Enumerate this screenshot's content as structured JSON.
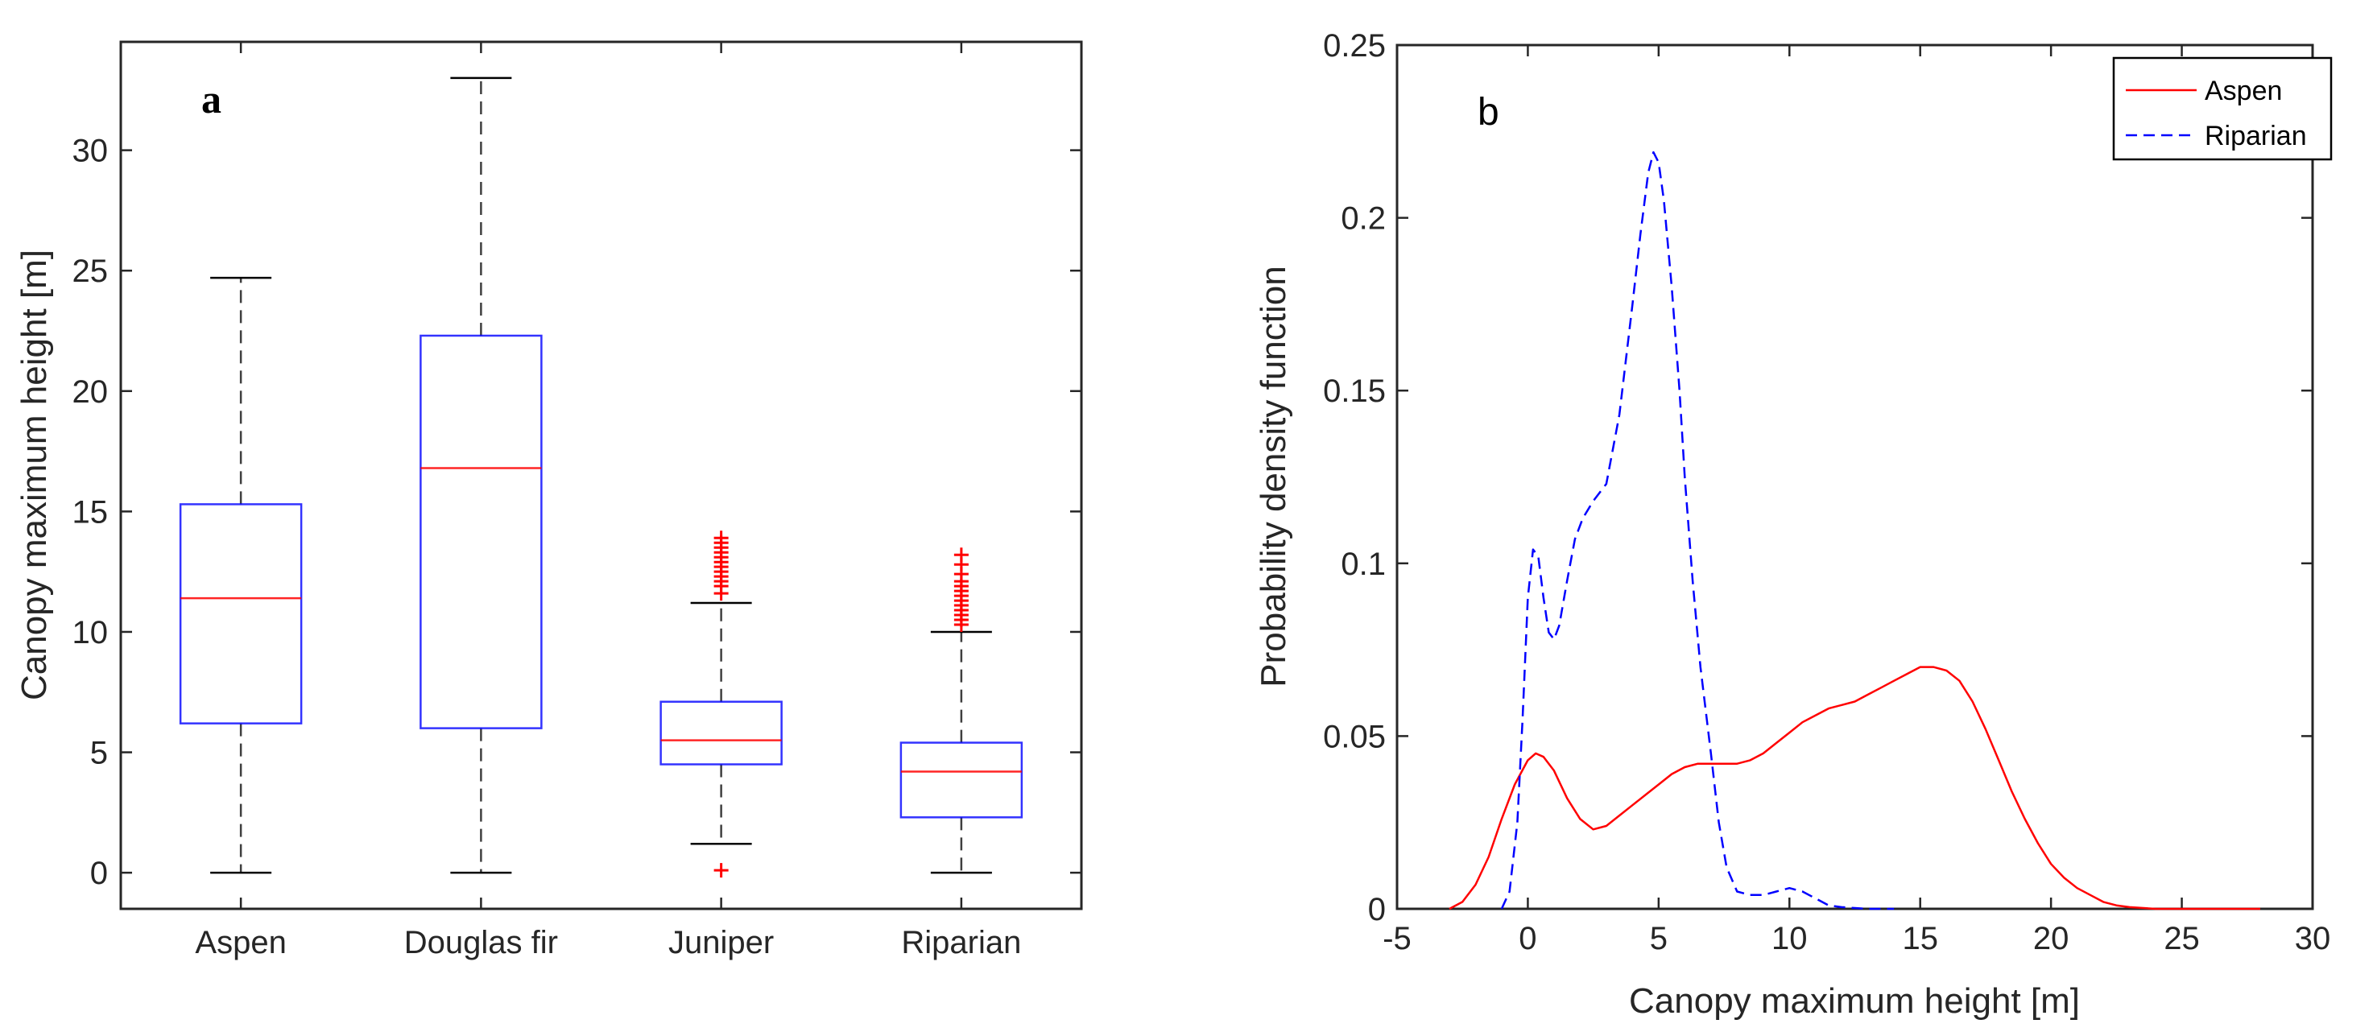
{
  "chart_data": [
    {
      "type": "box",
      "panel_label": "a",
      "ylabel": "Canopy maximum height [m]",
      "xlabel": "",
      "categories": [
        "Aspen",
        "Douglas fir",
        "Juniper",
        "Riparian"
      ],
      "ylim": [
        -1.5,
        34.5
      ],
      "yticks": [
        0,
        5,
        10,
        15,
        20,
        25,
        30
      ],
      "boxes": [
        {
          "name": "Aspen",
          "whisker_low": 0,
          "q1": 6.2,
          "median": 11.4,
          "q3": 15.3,
          "whisker_high": 24.7,
          "outliers": []
        },
        {
          "name": "Douglas fir",
          "whisker_low": 0,
          "q1": 6.0,
          "median": 16.8,
          "q3": 22.3,
          "whisker_high": 33.0,
          "outliers": []
        },
        {
          "name": "Juniper",
          "whisker_low": 1.2,
          "q1": 4.5,
          "median": 5.5,
          "q3": 7.1,
          "whisker_high": 11.2,
          "outliers": [
            0.1,
            11.6,
            11.9,
            12.1,
            12.3,
            12.5,
            12.7,
            12.9,
            13.1,
            13.3,
            13.5,
            13.7,
            13.9
          ]
        },
        {
          "name": "Riparian",
          "whisker_low": 0,
          "q1": 2.3,
          "median": 4.2,
          "q3": 5.4,
          "whisker_high": 10.0,
          "outliers": [
            10.3,
            10.5,
            10.7,
            10.9,
            11.1,
            11.3,
            11.5,
            11.7,
            11.9,
            12.1,
            12.4,
            12.8,
            13.2
          ]
        }
      ],
      "colors": {
        "box": "#0000ff",
        "median": "#ff0000",
        "whisker": "#000000",
        "outlier": "#ff0000"
      }
    },
    {
      "type": "line",
      "panel_label": "b",
      "xlabel": "Canopy maximum height [m]",
      "ylabel": "Probability density function",
      "xlim": [
        -5,
        30
      ],
      "ylim": [
        0,
        0.25
      ],
      "xticks": [
        -5,
        0,
        5,
        10,
        15,
        20,
        25,
        30
      ],
      "yticks": [
        0,
        0.05,
        0.1,
        0.15,
        0.2,
        0.25
      ],
      "ytick_labels": [
        "0",
        "0.05",
        "0.1",
        "0.15",
        "0.2",
        "0.25"
      ],
      "legend_position": "top-right",
      "series": [
        {
          "name": "Aspen",
          "style": "solid",
          "color": "#ff0000",
          "x": [
            -3,
            -2.5,
            -2,
            -1.5,
            -1,
            -0.5,
            0,
            0.3,
            0.6,
            1,
            1.5,
            2,
            2.5,
            3,
            3.5,
            4,
            4.5,
            5,
            5.5,
            6,
            6.5,
            7,
            7.5,
            8,
            8.5,
            9,
            9.5,
            10,
            10.5,
            11,
            11.5,
            12,
            12.5,
            13,
            13.5,
            14,
            14.5,
            15,
            15.5,
            16,
            16.5,
            17,
            17.5,
            18,
            18.5,
            19,
            19.5,
            20,
            20.5,
            21,
            21.5,
            22,
            22.5,
            23,
            24,
            25,
            26,
            27,
            28
          ],
          "y": [
            0,
            0.002,
            0.007,
            0.015,
            0.026,
            0.036,
            0.043,
            0.045,
            0.044,
            0.04,
            0.032,
            0.026,
            0.023,
            0.024,
            0.027,
            0.03,
            0.033,
            0.036,
            0.039,
            0.041,
            0.042,
            0.042,
            0.042,
            0.042,
            0.043,
            0.045,
            0.048,
            0.051,
            0.054,
            0.056,
            0.058,
            0.059,
            0.06,
            0.062,
            0.064,
            0.066,
            0.068,
            0.07,
            0.07,
            0.069,
            0.066,
            0.06,
            0.052,
            0.043,
            0.034,
            0.026,
            0.019,
            0.013,
            0.009,
            0.006,
            0.004,
            0.002,
            0.001,
            0.0005,
            0,
            0,
            0,
            0,
            0
          ]
        },
        {
          "name": "Riparian",
          "style": "dashed",
          "color": "#0000ff",
          "x": [
            -1,
            -0.7,
            -0.4,
            -0.2,
            0,
            0.2,
            0.4,
            0.6,
            0.8,
            1,
            1.2,
            1.5,
            1.8,
            2.1,
            2.5,
            3,
            3.5,
            4,
            4.3,
            4.6,
            4.8,
            5,
            5.2,
            5.5,
            5.8,
            6,
            6.3,
            6.6,
            7,
            7.3,
            7.6,
            8,
            8.5,
            9,
            9.5,
            10,
            10.5,
            11,
            11.5,
            12,
            13,
            14
          ],
          "y": [
            0,
            0.005,
            0.025,
            0.055,
            0.09,
            0.104,
            0.102,
            0.09,
            0.08,
            0.078,
            0.082,
            0.095,
            0.107,
            0.113,
            0.118,
            0.123,
            0.143,
            0.175,
            0.195,
            0.213,
            0.219,
            0.216,
            0.205,
            0.18,
            0.15,
            0.125,
            0.095,
            0.07,
            0.045,
            0.025,
            0.012,
            0.005,
            0.004,
            0.004,
            0.005,
            0.006,
            0.005,
            0.003,
            0.001,
            0.0005,
            0,
            0
          ]
        }
      ]
    }
  ]
}
